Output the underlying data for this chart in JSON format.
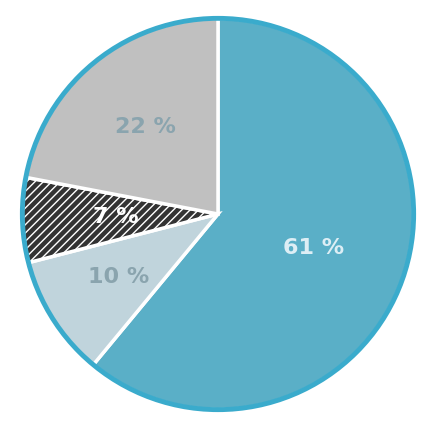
{
  "slices": [
    61,
    10,
    7,
    22
  ],
  "labels": [
    "61 %",
    "10 %",
    "7 %",
    "22 %"
  ],
  "colors": [
    "#5aafc7",
    "#c0d4dc",
    "#333333",
    "#c0c0c0"
  ],
  "hatch": [
    null,
    null,
    "////",
    null
  ],
  "hatch_color": "#666666",
  "text_colors": [
    "#ddeef5",
    "#8aa4ae",
    "#ffffff",
    "#8aa4ae"
  ],
  "edge_color": "#ffffff",
  "edge_linewidth": 2.5,
  "circle_edge_color": "#3aabcc",
  "circle_edge_width": 3.5,
  "startangle": 90,
  "label_fontsize": 16,
  "label_fontweight": "bold",
  "figsize": [
    4.36,
    4.28
  ],
  "dpi": 100,
  "background_color": "#ffffff",
  "label_radius": {
    "61": 0.52,
    "10": 0.6,
    "7": 0.52,
    "22": 0.58
  }
}
